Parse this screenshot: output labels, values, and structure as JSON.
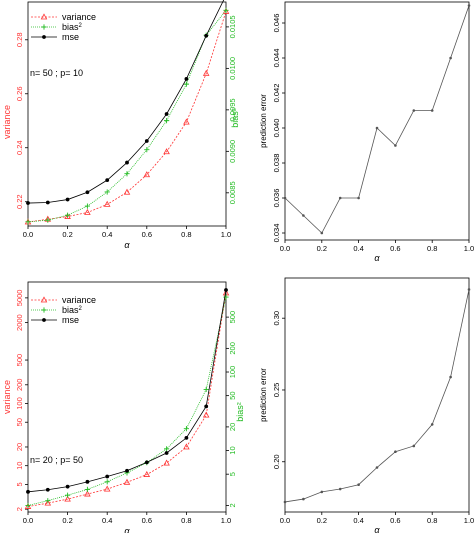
{
  "colors": {
    "variance": "#ff3333",
    "bias2": "#22bb22",
    "mse": "#000000",
    "pred": "#555555",
    "axis": "#000000"
  },
  "chart_data": [
    {
      "id": "top-left",
      "type": "line",
      "annotation": "n= 50 ; p= 10",
      "xlabel": "α",
      "ylabel_left": "variance",
      "ylabel_right": "bias²",
      "xticks": [
        "0.0",
        "0.2",
        "0.4",
        "0.6",
        "0.8",
        "1.0"
      ],
      "yticks_left": [
        "0.22",
        "0.24",
        "0.26",
        "0.28"
      ],
      "yticks_right": [
        "0.0085",
        "0.0090",
        "0.0095",
        "0.0100",
        "0.0105"
      ],
      "xlim": [
        0,
        1
      ],
      "ylim_left": [
        0.211,
        0.294
      ],
      "ylim_right": [
        0.0081,
        0.0108
      ],
      "legend": [
        {
          "label": "variance",
          "marker": "triangle"
        },
        {
          "label": "bias",
          "sup": "2",
          "marker": "plus"
        },
        {
          "label": "mse",
          "marker": "circle"
        }
      ],
      "x": [
        0,
        0.1,
        0.2,
        0.3,
        0.4,
        0.5,
        0.6,
        0.7,
        0.8,
        0.9,
        1.0
      ],
      "series": [
        {
          "name": "variance",
          "axis": "left",
          "values": [
            0.2125,
            0.2135,
            0.2145,
            0.216,
            0.219,
            0.2235,
            0.23,
            0.2385,
            0.2495,
            0.2675,
            0.2905
          ]
        },
        {
          "name": "bias²",
          "axis": "right",
          "values": [
            0.00815,
            0.00817,
            0.00823,
            0.00834,
            0.00851,
            0.00873,
            0.00902,
            0.00937,
            0.00981,
            0.0104,
            0.0107
          ]
        },
        {
          "name": "mse",
          "axis": "left",
          "values": [
            0.2195,
            0.2197,
            0.2208,
            0.2235,
            0.228,
            0.2345,
            0.2425,
            0.2525,
            0.2655,
            0.2815,
            0.2965
          ]
        }
      ]
    },
    {
      "id": "top-right",
      "type": "line",
      "xlabel": "α",
      "ylabel": "prediction error",
      "xticks": [
        "0.0",
        "0.2",
        "0.4",
        "0.6",
        "0.8",
        "1.0"
      ],
      "yticks": [
        "0.034",
        "0.036",
        "0.038",
        "0.040",
        "0.042",
        "0.044",
        "0.046"
      ],
      "xlim": [
        0,
        1
      ],
      "ylim": [
        0.0336,
        0.0472
      ],
      "x": [
        0,
        0.1,
        0.2,
        0.3,
        0.4,
        0.5,
        0.6,
        0.7,
        0.8,
        0.9,
        1.0
      ],
      "values": [
        0.036,
        0.035,
        0.034,
        0.036,
        0.036,
        0.04,
        0.039,
        0.041,
        0.041,
        0.044,
        0.047
      ]
    },
    {
      "id": "bottom-left",
      "type": "line",
      "annotation": "n= 20 ; p= 50",
      "xlabel": "α",
      "ylabel_left": "variance",
      "ylabel_right": "bias²",
      "log_scale": true,
      "xticks": [
        "0.0",
        "0.2",
        "0.4",
        "0.6",
        "0.8",
        "1.0"
      ],
      "yticks_left": [
        "2",
        "5",
        "10",
        "20",
        "50",
        "100",
        "200",
        "500",
        "2000",
        "5000"
      ],
      "yticks_right": [
        "2",
        "5",
        "10",
        "20",
        "50",
        "100",
        "200",
        "500"
      ],
      "xlim": [
        0,
        1
      ],
      "ylim_left": [
        1.8,
        9000
      ],
      "ylim_right": [
        1.65,
        1400
      ],
      "legend": [
        {
          "label": "variance",
          "marker": "triangle"
        },
        {
          "label": "bias",
          "sup": "2",
          "marker": "plus"
        },
        {
          "label": "mse",
          "marker": "circle"
        }
      ],
      "x": [
        0,
        0.1,
        0.2,
        0.3,
        0.4,
        0.5,
        0.6,
        0.7,
        0.8,
        0.9,
        1.0
      ],
      "series": [
        {
          "name": "variance",
          "axis": "left",
          "values": [
            2.2,
            2.5,
            2.9,
            3.5,
            4.2,
            5.4,
            7.2,
            11,
            20,
            65,
            6000
          ]
        },
        {
          "name": "bias²",
          "axis": "right",
          "values": [
            2.0,
            2.3,
            2.7,
            3.2,
            4.0,
            5.2,
            7.0,
            10.5,
            19,
            60,
            900
          ]
        },
        {
          "name": "mse",
          "axis": "left",
          "values": [
            3.8,
            4.1,
            4.6,
            5.5,
            6.7,
            8.3,
            11.3,
            16.0,
            28.0,
            90,
            6700
          ]
        }
      ]
    },
    {
      "id": "bottom-right",
      "type": "line",
      "xlabel": "α",
      "ylabel": "prediction error",
      "xticks": [
        "0.0",
        "0.2",
        "0.4",
        "0.6",
        "0.8",
        "1.0"
      ],
      "yticks": [
        "0.20",
        "0.25",
        "0.30"
      ],
      "xlim": [
        0,
        1
      ],
      "ylim": [
        0.165,
        0.328
      ],
      "x": [
        0,
        0.1,
        0.2,
        0.3,
        0.4,
        0.5,
        0.6,
        0.7,
        0.8,
        0.9,
        1.0
      ],
      "values": [
        0.172,
        0.174,
        0.179,
        0.181,
        0.184,
        0.196,
        0.207,
        0.211,
        0.226,
        0.259,
        0.32
      ]
    }
  ]
}
